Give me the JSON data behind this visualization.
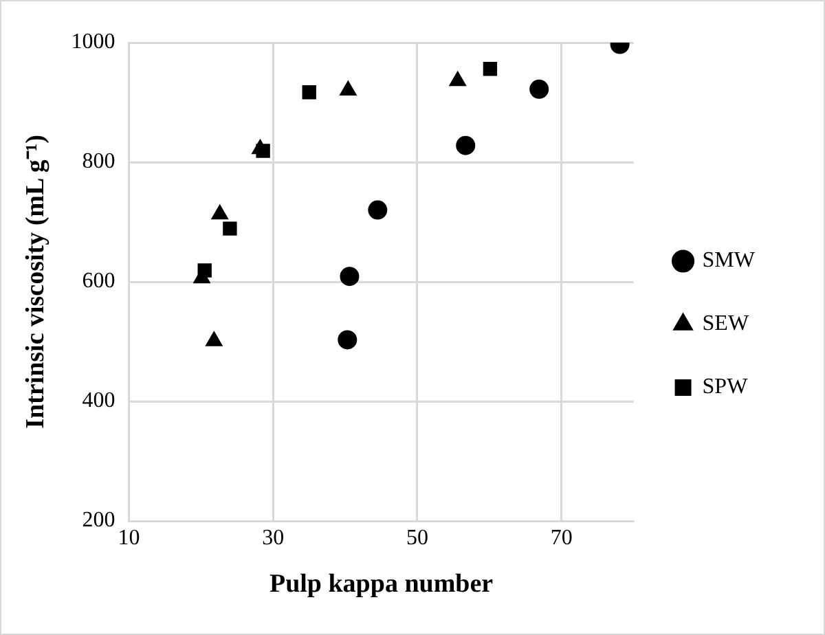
{
  "chart_data": {
    "type": "scatter",
    "xlabel": "Pulp kappa number",
    "ylabel": "Intrinsic viscosity (mL g⁻¹)",
    "xlim": [
      10,
      80
    ],
    "xticks": [
      10,
      30,
      50,
      70
    ],
    "ylim": [
      200,
      1000
    ],
    "yticks": [
      200,
      400,
      600,
      800,
      1000
    ],
    "grid": true,
    "legend": "right",
    "series": [
      {
        "name": "SMW",
        "color": "#000000",
        "marker": "circle",
        "x": [
          78.1,
          66.9,
          56.7,
          44.5,
          40.6,
          40.3
        ],
        "values": [
          997,
          922,
          828,
          720,
          609,
          503
        ]
      },
      {
        "name": "SEW",
        "color": "#000000",
        "marker": "triangle",
        "x": [
          20.1,
          21.8,
          22.6,
          28.2,
          40.4,
          55.6
        ],
        "values": [
          606,
          501,
          713,
          822,
          920,
          936
        ]
      },
      {
        "name": "SPW",
        "color": "#000000",
        "marker": "square",
        "x": [
          20.5,
          24.0,
          28.6,
          35.0,
          60.1
        ],
        "values": [
          619,
          689,
          819,
          917,
          956
        ]
      }
    ]
  }
}
